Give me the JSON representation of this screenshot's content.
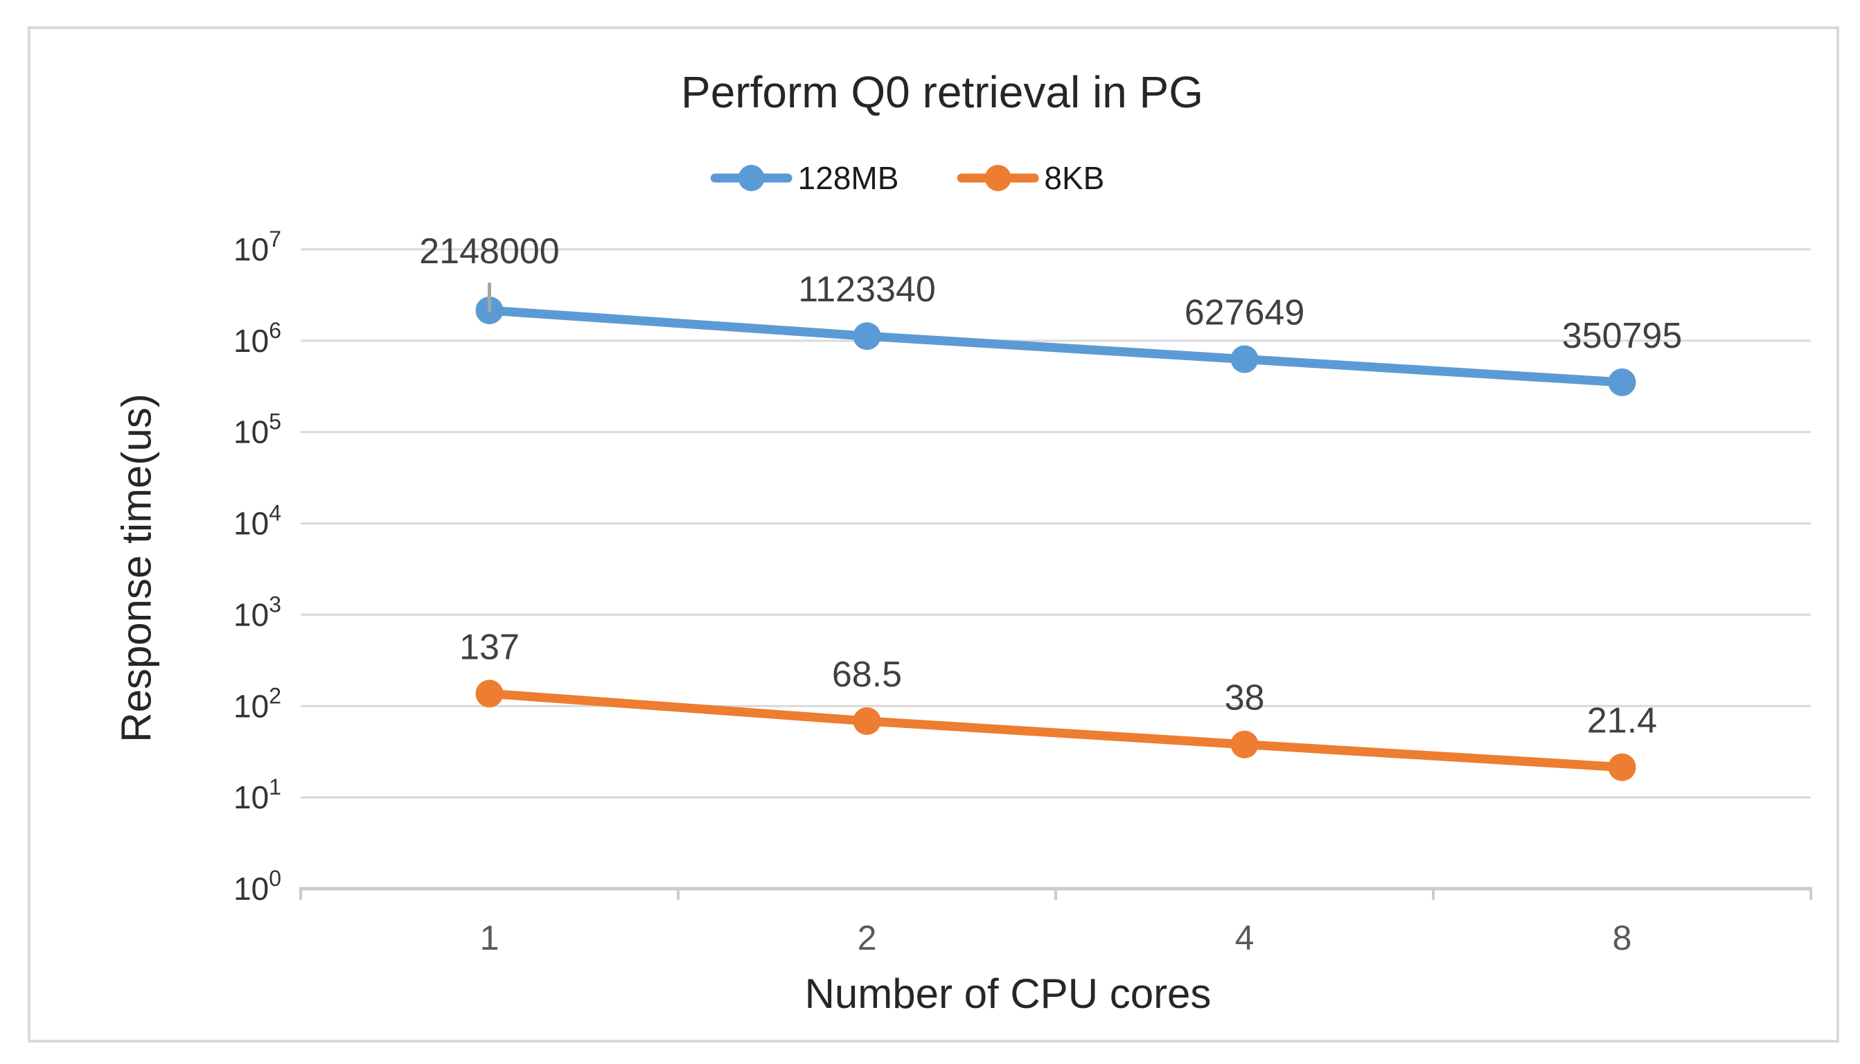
{
  "figure": {
    "title": "Perform Q0 retrieval in PG",
    "x_axis_title": "Number of CPU cores",
    "y_axis_title": "Response time(us)"
  },
  "chart_data": {
    "type": "line",
    "title": "Perform Q0 retrieval in PG",
    "xlabel": "Number of CPU cores",
    "ylabel": "Response time(us)",
    "x_categories": [
      "1",
      "2",
      "4",
      "8"
    ],
    "y_scale": "log10",
    "ylim": [
      1,
      10000000
    ],
    "y_tick_exponents": [
      0,
      1,
      2,
      3,
      4,
      5,
      6,
      7
    ],
    "y_tick_labels": [
      "10^0",
      "10^1",
      "10^2",
      "10^3",
      "10^4",
      "10^5",
      "10^6",
      "10^7"
    ],
    "grid": "horizontal",
    "legend_position": "top",
    "series": [
      {
        "name": "128MB",
        "color": "#5B9BD5",
        "values": [
          2148000,
          1123340,
          627649,
          350795
        ],
        "data_labels": [
          "2148000",
          "1123340",
          "627649",
          "350795"
        ]
      },
      {
        "name": "8KB",
        "color": "#ED7D31",
        "values": [
          137,
          68.5,
          38,
          21.4
        ],
        "data_labels": [
          "137",
          "68.5",
          "38",
          "21.4"
        ]
      }
    ],
    "error_bar": {
      "series_index": 0,
      "point_index": 0,
      "color": "#A6A6A6"
    }
  },
  "colors": {
    "grid": "#D9D9D9",
    "axis_line": "#CCCCCC",
    "y_tick_text": "#333333",
    "x_tick_text": "#595959",
    "data_label_text": "#404040",
    "title_text": "#262626",
    "border": "#D9D9D9",
    "error_bar": "#A6A6A6"
  }
}
